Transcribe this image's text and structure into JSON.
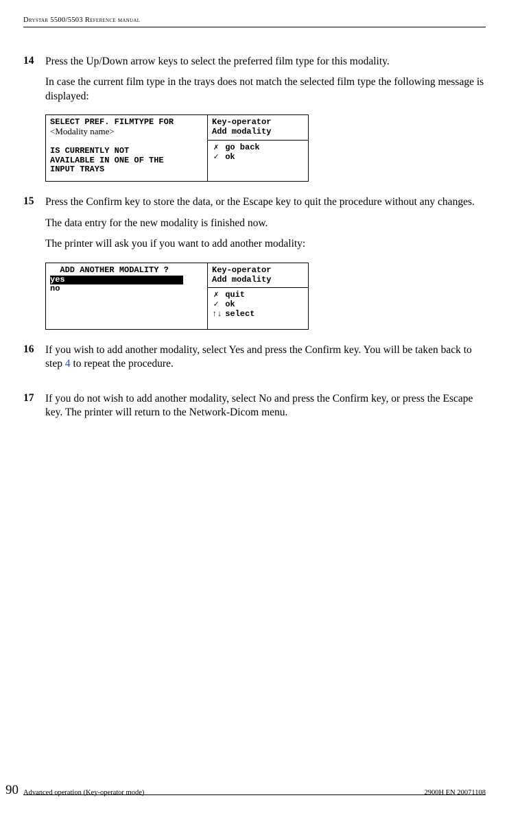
{
  "header": {
    "title": "Drystar 5500/5503 Reference manual"
  },
  "steps": [
    {
      "num": "14",
      "paras": [
        "Press the Up/Down arrow keys to select the preferred film type for this modality.",
        "In case the current film type in the trays does not match the selected film type the following message is displayed:"
      ],
      "lcd": {
        "left_pre": "SELECT PREF. FILMTYPE FOR\n\n\nIS CURRENTLY NOT\nAVAILABLE IN ONE OF THE\nINPUT TRAYS",
        "overlay": "<Modality name>",
        "right_top": "Key-operator\nAdd modality",
        "right_bot": [
          {
            "sym": "✗",
            "txt": "go back"
          },
          {
            "sym": "✓",
            "txt": "ok"
          }
        ]
      }
    },
    {
      "num": "15",
      "paras": [
        "Press the Confirm key to store the data, or the Escape key to quit the procedure without any changes.",
        "The data entry for the new modality is finished now.",
        "The printer will ask you if you want to add another modality:"
      ],
      "lcd": {
        "left_pre_html": "  ADD ANOTHER MODALITY ?\n<span class=\"inv\">yes                        </span>\nno",
        "right_top": "Key-operator\nAdd modality",
        "right_bot": [
          {
            "sym": "✗",
            "txt": "quit"
          },
          {
            "sym": "✓",
            "txt": "ok"
          },
          {
            "sym": "↑↓",
            "txt": "select"
          }
        ]
      }
    },
    {
      "num": "16",
      "paras_html": [
        "If you wish to add another modality, select Yes and press the Confirm key. You will be taken back to step <a class=\"ref\" href=\"#\">4</a> to repeat the procedure."
      ]
    },
    {
      "num": "17",
      "paras": [
        "If you do not wish to add another modality, select No and press the Confirm key, or press the Escape key. The printer will return to the Network-Dicom menu."
      ]
    }
  ],
  "footer": {
    "page": "90",
    "left": "Advanced operation (Key-operator mode)",
    "right": "2900H EN 20071108"
  }
}
